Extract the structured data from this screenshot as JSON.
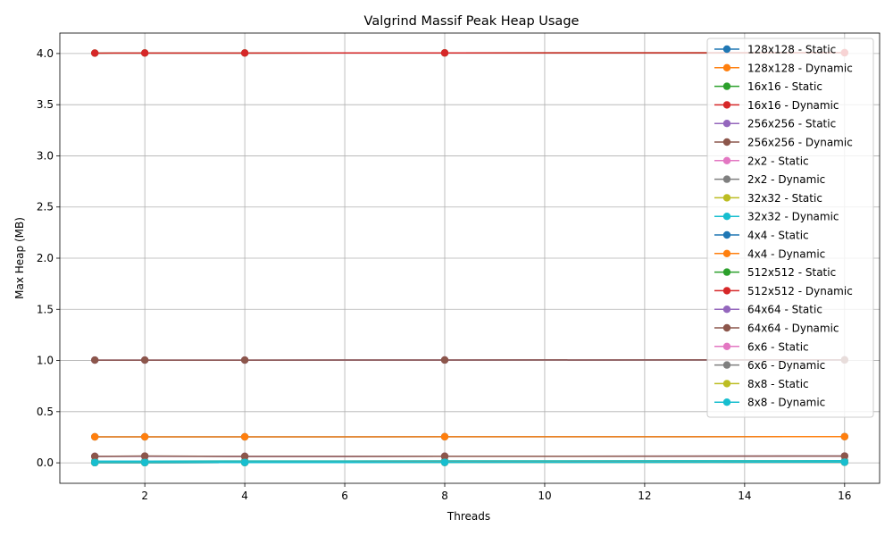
{
  "chart_data": {
    "type": "line",
    "title": "Valgrind Massif Peak Heap Usage",
    "xlabel": "Threads",
    "ylabel": "Max Heap (MB)",
    "x": [
      1,
      2,
      4,
      8,
      16
    ],
    "xlim": [
      0.3,
      16.7
    ],
    "ylim": [
      -0.2,
      4.2
    ],
    "xticks": [
      "2",
      "4",
      "6",
      "8",
      "10",
      "12",
      "14",
      "16"
    ],
    "yticks": [
      "0.0",
      "0.5",
      "1.0",
      "1.5",
      "2.0",
      "2.5",
      "3.0",
      "3.5",
      "4.0"
    ],
    "grid": true,
    "legend_position": "top-right",
    "series": [
      {
        "name": "128x128 - Static",
        "color": "#1f77b4",
        "values": [
          0.254,
          0.254,
          0.254,
          0.255,
          0.256
        ]
      },
      {
        "name": "128x128 - Dynamic",
        "color": "#ff7f0e",
        "values": [
          0.254,
          0.254,
          0.254,
          0.255,
          0.256
        ]
      },
      {
        "name": "16x16 - Static",
        "color": "#2ca02c",
        "values": [
          0.004,
          0.004,
          0.005,
          0.006,
          0.008
        ]
      },
      {
        "name": "16x16 - Dynamic",
        "color": "#d62728",
        "values": [
          0.005,
          0.005,
          0.006,
          0.007,
          0.009
        ]
      },
      {
        "name": "256x256 - Static",
        "color": "#9467bd",
        "values": [
          1.004,
          1.004,
          1.004,
          1.005,
          1.006
        ]
      },
      {
        "name": "256x256 - Dynamic",
        "color": "#8c564b",
        "values": [
          1.004,
          1.004,
          1.004,
          1.005,
          1.006
        ]
      },
      {
        "name": "2x2 - Static",
        "color": "#e377c2",
        "values": [
          0.002,
          0.002,
          0.003,
          0.004,
          0.006
        ]
      },
      {
        "name": "2x2 - Dynamic",
        "color": "#7f7f7f",
        "values": [
          0.002,
          0.002,
          0.003,
          0.004,
          0.006
        ]
      },
      {
        "name": "32x32 - Static",
        "color": "#bcbd22",
        "values": [
          0.016,
          0.016,
          0.017,
          0.018,
          0.02
        ]
      },
      {
        "name": "32x32 - Dynamic",
        "color": "#17becf",
        "values": [
          0.016,
          0.016,
          0.017,
          0.018,
          0.02
        ]
      },
      {
        "name": "4x4 - Static",
        "color": "#1f77b4",
        "values": [
          0.002,
          0.002,
          0.003,
          0.004,
          0.006
        ]
      },
      {
        "name": "4x4 - Dynamic",
        "color": "#ff7f0e",
        "values": [
          0.002,
          0.002,
          0.003,
          0.004,
          0.006
        ]
      },
      {
        "name": "512x512 - Static",
        "color": "#2ca02c",
        "values": [
          4.004,
          4.005,
          4.005,
          4.006,
          4.008
        ]
      },
      {
        "name": "512x512 - Dynamic",
        "color": "#d62728",
        "values": [
          4.004,
          4.005,
          4.005,
          4.006,
          4.008
        ]
      },
      {
        "name": "64x64 - Static",
        "color": "#9467bd",
        "values": [
          0.063,
          0.064,
          0.063,
          0.064,
          0.066
        ]
      },
      {
        "name": "64x64 - Dynamic",
        "color": "#8c564b",
        "values": [
          0.063,
          0.066,
          0.063,
          0.064,
          0.066
        ]
      },
      {
        "name": "6x6 - Static",
        "color": "#e377c2",
        "values": [
          0.002,
          0.002,
          0.003,
          0.004,
          0.006
        ]
      },
      {
        "name": "6x6 - Dynamic",
        "color": "#7f7f7f",
        "values": [
          0.002,
          0.002,
          0.003,
          0.004,
          0.006
        ]
      },
      {
        "name": "8x8 - Static",
        "color": "#bcbd22",
        "values": [
          0.002,
          0.002,
          0.003,
          0.004,
          0.006
        ]
      },
      {
        "name": "8x8 - Dynamic",
        "color": "#17becf",
        "values": [
          0.002,
          0.002,
          0.003,
          0.004,
          0.006
        ]
      }
    ]
  }
}
